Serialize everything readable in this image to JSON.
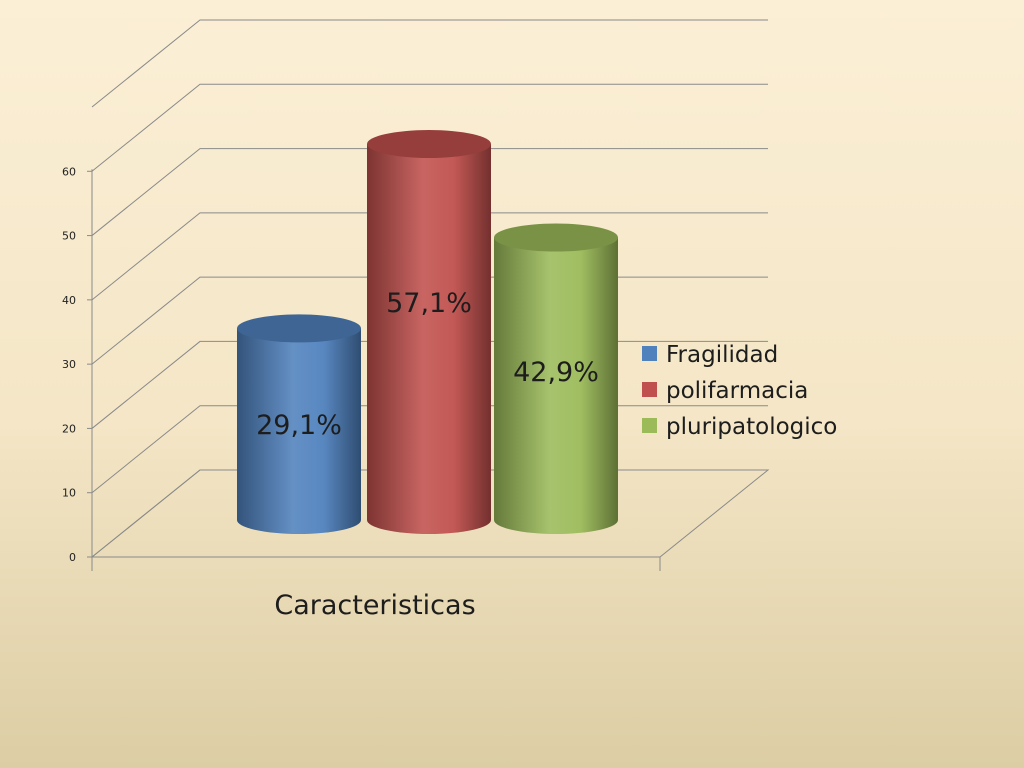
{
  "chart_data": {
    "type": "bar",
    "categories": [
      "Caracteristicas"
    ],
    "series": [
      {
        "name": "Fragilidad",
        "values": [
          29.1
        ],
        "label": "29,1%",
        "color": "#4f81bd"
      },
      {
        "name": "polifarmacia",
        "values": [
          57.1
        ],
        "label": "57,1%",
        "color": "#c0504d"
      },
      {
        "name": "pluripatologico",
        "values": [
          42.9
        ],
        "label": "42,9%",
        "color": "#9bbb59"
      }
    ],
    "xlabel": "Caracteristicas",
    "ylim": [
      0,
      70
    ],
    "yticks": [
      "0",
      "10",
      "20",
      "30",
      "40",
      "50",
      "60"
    ],
    "grid": true,
    "legend_position": "right",
    "style": "3d-cylinder"
  }
}
